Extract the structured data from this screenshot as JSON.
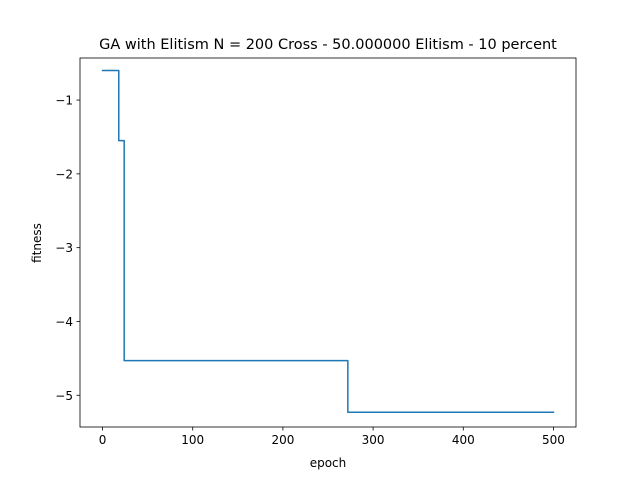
{
  "chart_data": {
    "type": "line",
    "title": "GA with Elitism N = 200 Cross - 50.000000 Elitism - 10 percent",
    "xlabel": "epoch",
    "ylabel": "fitness",
    "xlim": [
      -25,
      525
    ],
    "ylim": [
      -5.43,
      -0.43
    ],
    "xticks": [
      0,
      100,
      200,
      300,
      400,
      500
    ],
    "yticks": [
      -5,
      -4,
      -3,
      -2,
      -1
    ],
    "xtick_labels": [
      "0",
      "100",
      "200",
      "300",
      "400",
      "500"
    ],
    "ytick_labels": [
      "−5",
      "−4",
      "−3",
      "−2",
      "−1"
    ],
    "grid": false,
    "series": [
      {
        "color": "#1f77b4",
        "step": "post",
        "x": [
          0,
          18,
          22,
          24,
          272,
          500
        ],
        "y": [
          -0.6,
          -1.55,
          -1.55,
          -4.53,
          -5.23,
          -5.23
        ]
      }
    ]
  }
}
